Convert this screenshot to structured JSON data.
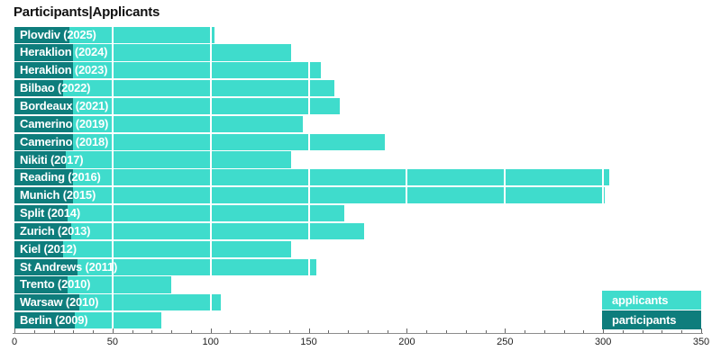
{
  "title": "Participants|Applicants",
  "legend": {
    "applicants_label": "applicants",
    "participants_label": "participants"
  },
  "colors": {
    "applicants": "#3fdccc",
    "participants": "#0e7d7c",
    "gridline": "#ffffff",
    "axis_line": "#8c8c8c",
    "tick": "#666666",
    "tick_label": "#222222",
    "title_text": "#111111",
    "bar_label_text": "#ffffff"
  },
  "axis": {
    "min": 0,
    "max": 350,
    "major_step": 50,
    "minor_step": 10,
    "tick_labels": [
      "0",
      "50",
      "100",
      "150",
      "200",
      "250",
      "300",
      "350"
    ]
  },
  "chart_data": {
    "type": "bar",
    "orientation": "horizontal",
    "title": "Participants|Applicants",
    "xlabel": "",
    "ylabel": "",
    "xlim": [
      0,
      350
    ],
    "grid": "white vertical gridlines every 50, visible over bars",
    "legend_position": "bottom-right",
    "categories": [
      "Plovdiv (2025)",
      "Heraklion (2024)",
      "Heraklion (2023)",
      "Bilbao (2022)",
      "Bordeaux (2021)",
      "Camerino (2019)",
      "Camerino (2018)",
      "Nikiti (2017)",
      "Reading (2016)",
      "Munich (2015)",
      "Split (2014)",
      "Zurich (2013)",
      "Kiel (2012)",
      "St Andrews (2011)",
      "Trento (2010)",
      "Warsaw (2010)",
      "Berlin (2009)"
    ],
    "series": [
      {
        "name": "applicants",
        "color": "#3fdccc",
        "values": [
          102,
          141,
          156,
          163,
          166,
          147,
          189,
          141,
          303,
          301,
          168,
          178,
          141,
          154,
          80,
          105,
          75
        ]
      },
      {
        "name": "participants",
        "color": "#0e7d7c",
        "values": [
          28,
          30,
          30,
          25,
          30,
          30,
          30,
          26,
          30,
          30,
          27,
          29,
          25,
          32,
          27,
          33,
          31
        ]
      }
    ]
  },
  "geometry_note": "plot x origin 16px, 350 units span 762px, first row top 29.5px, row pitch 19.85px, axis baseline y 370px"
}
